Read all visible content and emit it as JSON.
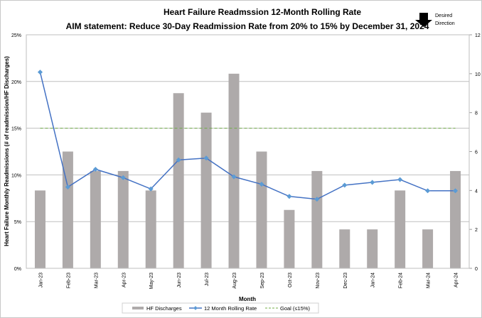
{
  "chart_data": {
    "type": "bar+line",
    "title": "Heart Failure Readmssion  12-Month Rolling Rate",
    "subtitle": "AIM statement: Reduce 30-Day Readmission Rate from 20% to 15% by December 31, 2024",
    "direction_note": "Desired Direction",
    "direction_icon": "arrow-down-icon",
    "xlabel": "Month",
    "ylabel": "Heart Failure Monthly Readmissions (# of readmission/HF Discharges)",
    "categories": [
      "Jan-23",
      "Feb-23",
      "Mar-23",
      "Apr-23",
      "May-23",
      "Jun-23",
      "Jul-23",
      "Aug-23",
      "Sep-23",
      "Oct-23",
      "Nov-23",
      "Dec-23",
      "Jan-24",
      "Feb-24",
      "Mar-24",
      "Apr-24"
    ],
    "left_axis": {
      "range": [
        0,
        25
      ],
      "ticks": [
        "0%",
        "5%",
        "10%",
        "15%",
        "20%",
        "25%"
      ],
      "tick_values": [
        0,
        5,
        10,
        15,
        20,
        25
      ]
    },
    "right_axis": {
      "range": [
        0,
        12
      ],
      "ticks": [
        "0",
        "2",
        "4",
        "6",
        "8",
        "10",
        "12"
      ],
      "tick_values": [
        0,
        2,
        4,
        6,
        8,
        10,
        12
      ]
    },
    "grid": true,
    "legend_position": "bottom",
    "series": [
      {
        "name": "HF Discharges",
        "type": "bar",
        "axis": "right",
        "color": "#aeaaaa",
        "values": [
          4,
          6,
          5,
          5,
          4,
          9,
          8,
          10,
          6,
          3,
          5,
          2,
          2,
          4,
          2,
          5
        ]
      },
      {
        "name": "12 Month Rolling Rate",
        "type": "line",
        "axis": "left",
        "color": "#4472c4",
        "marker_color": "#5b9bd5",
        "values": [
          21.0,
          8.7,
          10.6,
          9.7,
          8.5,
          11.6,
          11.8,
          9.8,
          9.0,
          7.7,
          7.4,
          8.9,
          9.2,
          9.5,
          8.3,
          8.3
        ]
      },
      {
        "name": "Goal (≤15%)",
        "type": "line",
        "axis": "left",
        "color": "#70ad47",
        "dashed": true,
        "value": 15
      }
    ]
  }
}
